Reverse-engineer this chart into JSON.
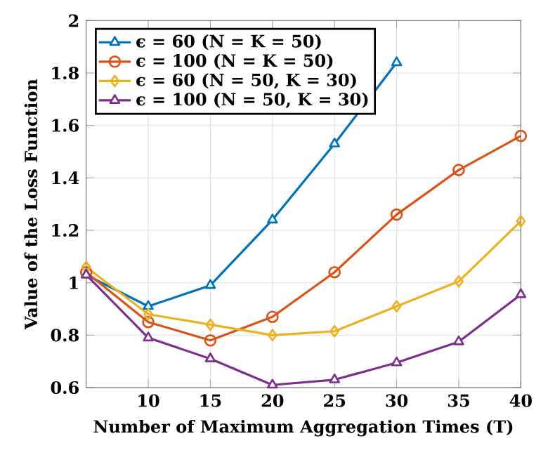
{
  "chart_data": {
    "type": "line",
    "xlabel": "Number of Maximum Aggregation Times (T)",
    "ylabel": "Value of the Loss Function",
    "xlim": [
      5,
      40
    ],
    "ylim": [
      0.6,
      2
    ],
    "xticks": [
      10,
      15,
      20,
      25,
      30,
      35,
      40
    ],
    "yticks": [
      0.6,
      0.8,
      1,
      1.2,
      1.4,
      1.6,
      1.8,
      2
    ],
    "grid": true,
    "legend": "top left",
    "series": [
      {
        "name": "ϵ = 60 (N = K = 50)",
        "color": "#0072bd",
        "marker": "triangle",
        "x": [
          5,
          10,
          15,
          20,
          25,
          30
        ],
        "values": [
          1.03,
          0.91,
          0.99,
          1.24,
          1.53,
          1.84
        ]
      },
      {
        "name": "ϵ = 100 (N = K = 50)",
        "color": "#d95319",
        "marker": "circle",
        "x": [
          5,
          10,
          15,
          20,
          25,
          30,
          35,
          40
        ],
        "values": [
          1.04,
          0.85,
          0.78,
          0.87,
          1.04,
          1.26,
          1.43,
          1.56
        ]
      },
      {
        "name": "ϵ = 60 (N = 50, K = 30)",
        "color": "#edb120",
        "marker": "diamond",
        "x": [
          5,
          10,
          15,
          20,
          25,
          30,
          35,
          40
        ],
        "values": [
          1.06,
          0.88,
          0.84,
          0.8,
          0.815,
          0.91,
          1.005,
          1.235
        ]
      },
      {
        "name": "ϵ = 100 (N = 50, K = 30)",
        "color": "#7e2f8e",
        "marker": "triangle",
        "x": [
          5,
          10,
          15,
          20,
          25,
          30,
          35,
          40
        ],
        "values": [
          1.03,
          0.79,
          0.71,
          0.61,
          0.63,
          0.695,
          0.775,
          0.955
        ]
      }
    ]
  }
}
